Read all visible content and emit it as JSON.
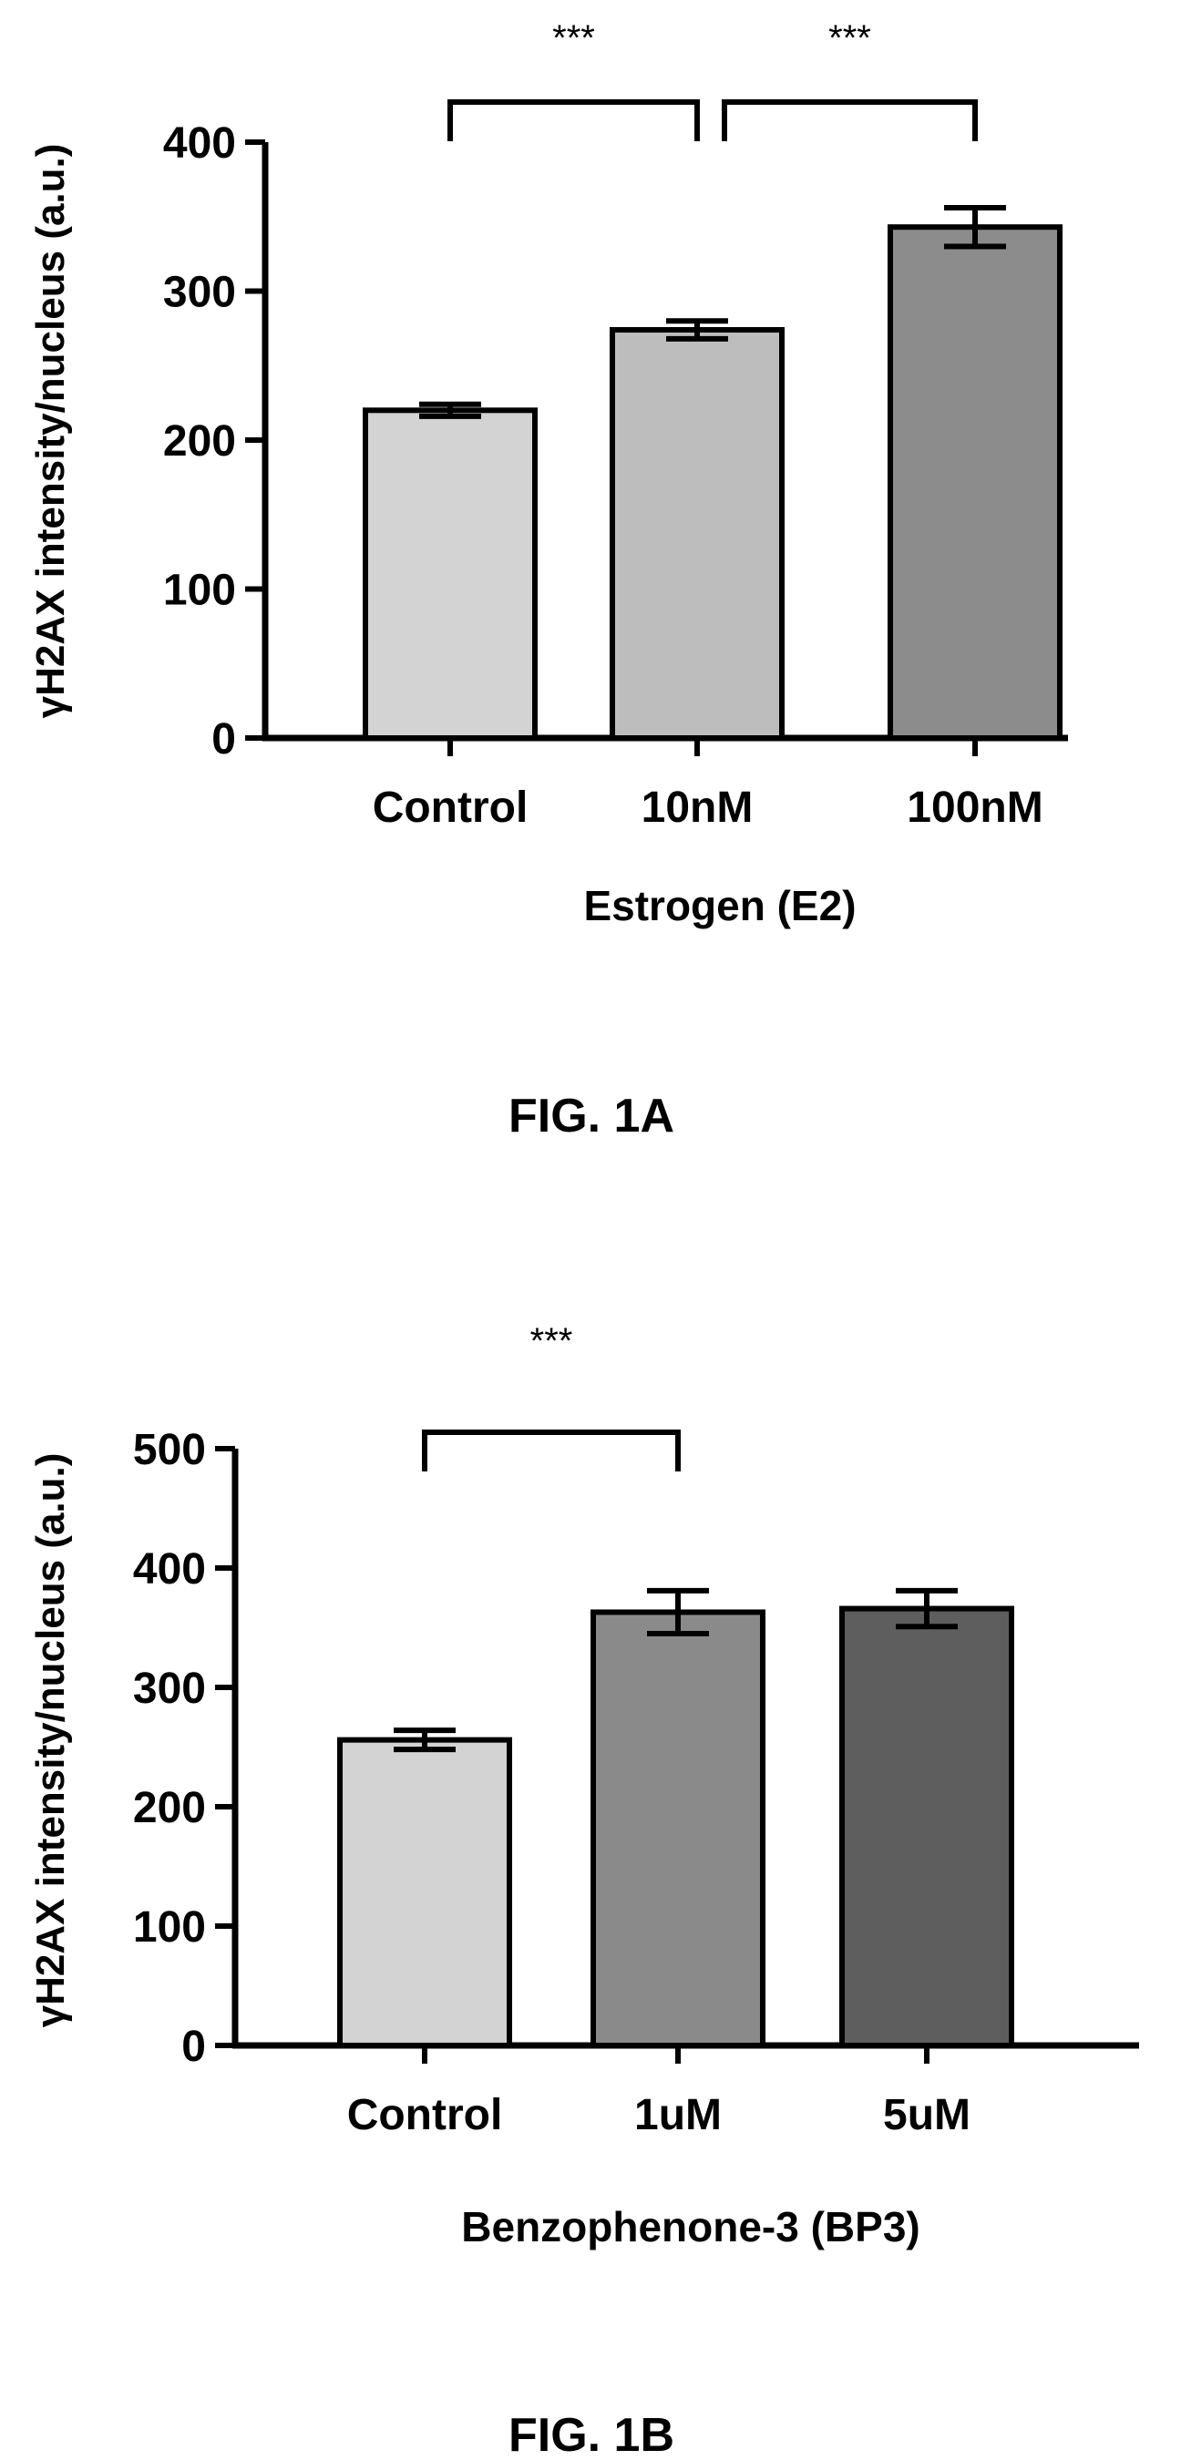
{
  "chart_data": [
    {
      "type": "bar",
      "caption": "FIG. 1A",
      "xlabel": "Estrogen (E2)",
      "ylabel": "γH2AX intensity/nucleus (a.u.)",
      "ylim": [
        0,
        400
      ],
      "yticks": [
        0,
        100,
        200,
        300,
        400
      ],
      "categories": [
        "Control",
        "10nM",
        "100nM"
      ],
      "values": [
        220,
        274,
        343
      ],
      "errors": [
        4,
        6,
        13
      ],
      "colors": [
        "#d3d3d3",
        "#bdbdbd",
        "#8c8c8c"
      ],
      "significance": [
        {
          "from": 0,
          "to": 1,
          "label": "***"
        },
        {
          "from": 1,
          "to": 2,
          "label": "***"
        }
      ],
      "grid": false
    },
    {
      "type": "bar",
      "caption": "FIG. 1B",
      "xlabel": "Benzophenone-3 (BP3)",
      "ylabel": "γH2AX intensity/nucleus (a.u.)",
      "ylim": [
        0,
        500
      ],
      "yticks": [
        0,
        100,
        200,
        300,
        400,
        500
      ],
      "categories": [
        "Control",
        "1uM",
        "5uM"
      ],
      "values": [
        256,
        363,
        366
      ],
      "errors": [
        8,
        18,
        15
      ],
      "colors": [
        "#d3d3d3",
        "#8a8a8a",
        "#5e5e5e"
      ],
      "significance": [
        {
          "from": 0,
          "to": 1,
          "label": "***"
        }
      ],
      "grid": false
    }
  ]
}
